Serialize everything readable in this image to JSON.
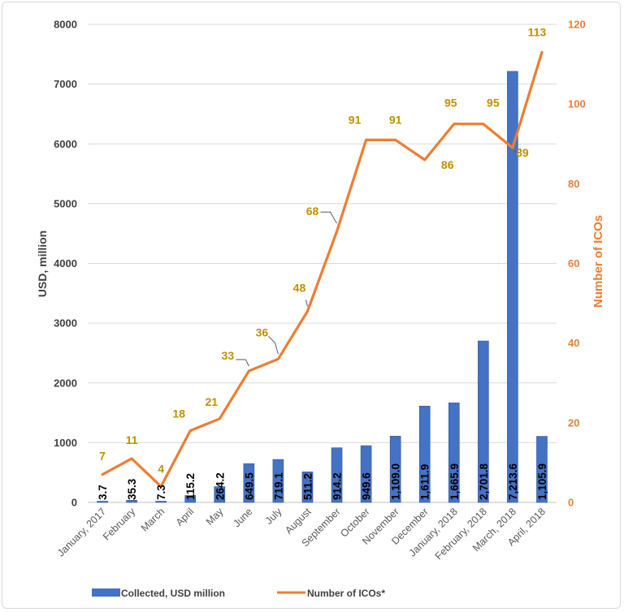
{
  "chart_data": {
    "type": "bar+line",
    "categories": [
      "January, 2017",
      "February",
      "March",
      "April",
      "May",
      "June",
      "July",
      "August",
      "September",
      "October",
      "November",
      "December",
      "January, 2018",
      "February, 2018",
      "March, 2018",
      "April, 2018"
    ],
    "series": [
      {
        "name": "Collected, USD million",
        "type": "bar",
        "axis": "left",
        "color": "#4472c4",
        "values": [
          3.7,
          35.3,
          7.3,
          115.2,
          264.2,
          649.5,
          719.1,
          511.2,
          914.2,
          949.6,
          1109.0,
          1611.9,
          1665.9,
          2701.8,
          7213.6,
          1105.9
        ],
        "labels": [
          "3.7",
          "35.3",
          "7.3",
          "115.2",
          "264.2",
          "649.5",
          "719.1",
          "511.2",
          "914.2",
          "949.6",
          "1,109.0",
          "1,611.9",
          "1,665.9",
          "2,701.8",
          "7,213.6",
          "1,105.9"
        ]
      },
      {
        "name": "Number of ICOs*",
        "type": "line",
        "axis": "right",
        "color": "#ed7d31",
        "values": [
          7,
          11,
          4,
          18,
          21,
          33,
          36,
          48,
          68,
          91,
          91,
          86,
          95,
          95,
          89,
          113
        ]
      }
    ],
    "ylabel": "USD, million",
    "y2label": "Number of ICOs",
    "ylim": [
      0,
      8000
    ],
    "y2lim": [
      0,
      120
    ],
    "yticks": [
      0,
      1000,
      2000,
      3000,
      4000,
      5000,
      6000,
      7000,
      8000
    ],
    "y2ticks": [
      0,
      20,
      40,
      60,
      80,
      100,
      120
    ],
    "grid": true,
    "legend": "bottom-left"
  }
}
